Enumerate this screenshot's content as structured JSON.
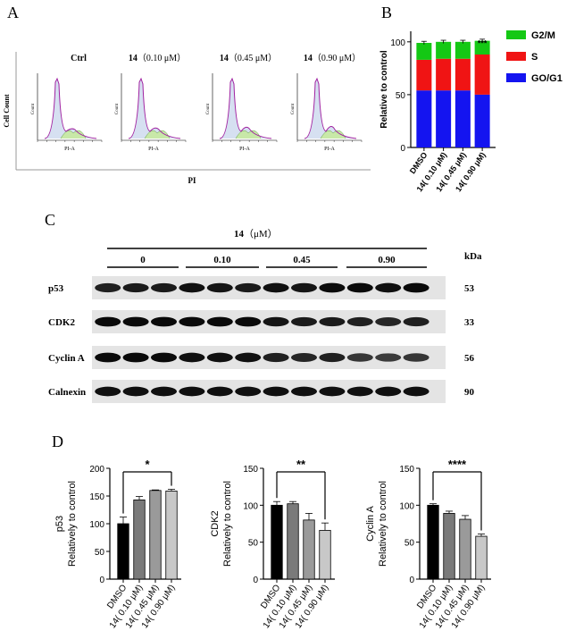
{
  "panel_labels": {
    "A": "A",
    "B": "B",
    "C": "C",
    "D": "D"
  },
  "panelA": {
    "y_title": "Cell Count",
    "x_title": "PI",
    "hist_ylabel": "Count",
    "hist_xlabel": "PI-A",
    "conditions": [
      {
        "prefix": "Ctrl",
        "conc": ""
      },
      {
        "prefix": "14",
        "conc": "（0.10 μM）"
      },
      {
        "prefix": "14",
        "conc": "（0.45 μM）"
      },
      {
        "prefix": "14",
        "conc": "（0.90 μM）"
      }
    ]
  },
  "panelC": {
    "treatment_prefix": "14",
    "treatment_unit": "（μM）",
    "groups": [
      "0",
      "0.10",
      "0.45",
      "0.90"
    ],
    "kda_label": "kDa",
    "proteins": [
      {
        "name": "p53",
        "kda": "53"
      },
      {
        "name": "CDK2",
        "kda": "33"
      },
      {
        "name": "Cyclin A",
        "kda": "56"
      },
      {
        "name": "Calnexin",
        "kda": "90"
      }
    ],
    "band_intensity": [
      [
        0.8,
        0.85,
        0.85,
        0.95,
        0.9,
        0.85,
        0.95,
        0.9,
        1.0,
        1.0,
        0.95,
        1.0
      ],
      [
        1.0,
        1.0,
        1.0,
        1.0,
        1.0,
        1.0,
        0.9,
        0.85,
        0.85,
        0.8,
        0.75,
        0.8
      ],
      [
        1.0,
        1.0,
        1.0,
        0.95,
        0.95,
        0.95,
        0.8,
        0.75,
        0.8,
        0.6,
        0.55,
        0.6
      ],
      [
        0.95,
        0.95,
        0.95,
        0.95,
        0.95,
        0.95,
        0.95,
        0.95,
        0.95,
        0.95,
        0.95,
        0.95
      ]
    ]
  },
  "chart_data": [
    {
      "panel": "B",
      "type": "bar",
      "stacked": true,
      "categories": [
        "DMSO",
        "14( 0.10 μM)",
        "14( 0.45 μM)",
        "14( 0.90 μM)"
      ],
      "ylabel": "Relative to control",
      "ylim": [
        0,
        110
      ],
      "yticks": [
        0,
        50,
        100
      ],
      "series": [
        {
          "name": "GO/G1",
          "values": [
            54,
            54,
            54,
            50
          ],
          "color": "#1414f0"
        },
        {
          "name": "S",
          "values": [
            29,
            30,
            30,
            38
          ],
          "color": "#f01414"
        },
        {
          "name": "G2/M",
          "values": [
            16,
            16,
            16,
            13
          ],
          "color": "#14c814"
        }
      ],
      "errors": [
        1.5,
        1.5,
        1.5,
        1.5
      ],
      "annotation": {
        "category_index": 3,
        "text": "***"
      },
      "legend_position": "right"
    },
    {
      "panel": "D1",
      "type": "bar",
      "categories": [
        "DMSO",
        "14( 0.10 μM)",
        "14( 0.45 μM)",
        "14( 0.90 μM)"
      ],
      "values": [
        100,
        143,
        160,
        159
      ],
      "errors": [
        12,
        6,
        1,
        3
      ],
      "ylabel_line1": "p53",
      "ylabel_line2": "Relatively to control",
      "ylim": [
        0,
        200
      ],
      "yticks": [
        0,
        50,
        100,
        150,
        200
      ],
      "significance": "*",
      "bar_colors": [
        "#000000",
        "#7a7a7a",
        "#9a9a9a",
        "#c8c8c8"
      ]
    },
    {
      "panel": "D2",
      "type": "bar",
      "categories": [
        "DMSO",
        "14( 0.10 μM)",
        "14( 0.45 μM)",
        "14( 0.90 μM)"
      ],
      "values": [
        100,
        102,
        80,
        66
      ],
      "errors": [
        5,
        3,
        9,
        10
      ],
      "ylabel_line1": "CDK2",
      "ylabel_line2": "Relatively to control",
      "ylim": [
        0,
        150
      ],
      "yticks": [
        0,
        50,
        100,
        150
      ],
      "significance": "**",
      "bar_colors": [
        "#000000",
        "#7a7a7a",
        "#9a9a9a",
        "#c8c8c8"
      ]
    },
    {
      "panel": "D3",
      "type": "bar",
      "categories": [
        "DMSO",
        "14( 0.10 μM)",
        "14( 0.45 μM)",
        "14( 0.90 μM)"
      ],
      "values": [
        100,
        89,
        81,
        58
      ],
      "errors": [
        2,
        3,
        5,
        3
      ],
      "ylabel_line1": "Cyclin  A",
      "ylabel_line2": "Relatively to control",
      "ylim": [
        0,
        150
      ],
      "yticks": [
        0,
        50,
        100,
        150
      ],
      "significance": "****",
      "bar_colors": [
        "#000000",
        "#7a7a7a",
        "#9a9a9a",
        "#c8c8c8"
      ]
    }
  ]
}
